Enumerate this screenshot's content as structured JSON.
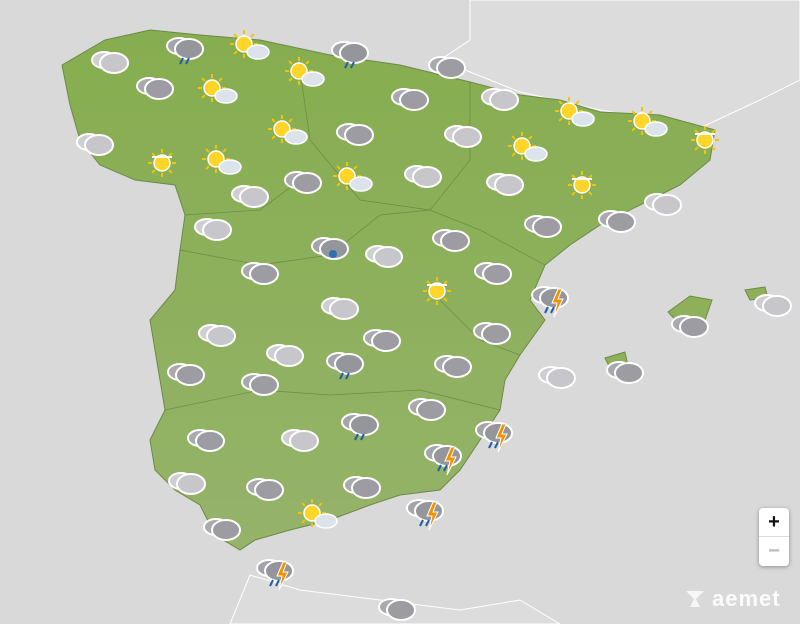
{
  "map": {
    "colors": {
      "sea": "#d9d9d9",
      "land": "#dcdcdc",
      "spain": "#8fb05a",
      "border": "#ffffff"
    },
    "weather_icons": [
      "cloudy-light",
      "cloudy-rain",
      "sun-cloud",
      "cloudy-rain",
      "cloudy",
      "sun-cloud",
      "sun-cloud",
      "cloudy",
      "cloudy",
      "cloudy-light",
      "cloudy-light",
      "sun-haze",
      "sun-cloud",
      "sun-cloud",
      "cloudy",
      "cloudy-light",
      "sun-cloud",
      "sun-cloud",
      "sun-haze",
      "sun-cloud",
      "cloudy-light",
      "cloudy",
      "sun-cloud",
      "cloudy-light",
      "cloudy-light",
      "sun-haze",
      "cloudy-light",
      "cloudy",
      "cloudy",
      "cloudy-light",
      "cloudy-hail",
      "cloudy-light",
      "cloudy",
      "cloudy",
      "sun-haze",
      "cloudy",
      "storm",
      "cloudy-light",
      "cloudy",
      "cloudy-light",
      "cloudy-light",
      "cloudy",
      "cloudy",
      "cloudy-light",
      "cloudy-rain",
      "cloudy",
      "cloudy-light",
      "cloudy",
      "cloudy",
      "cloudy",
      "cloudy",
      "cloudy-rain",
      "storm",
      "storm",
      "cloudy",
      "cloudy-light",
      "cloudy-light",
      "cloudy",
      "cloudy",
      "sun-cloud",
      "storm",
      "cloudy",
      "storm",
      "cloudy"
    ]
  },
  "controls": {
    "zoom_in": "+",
    "zoom_out": "−"
  },
  "logo": {
    "text": "aemet"
  }
}
